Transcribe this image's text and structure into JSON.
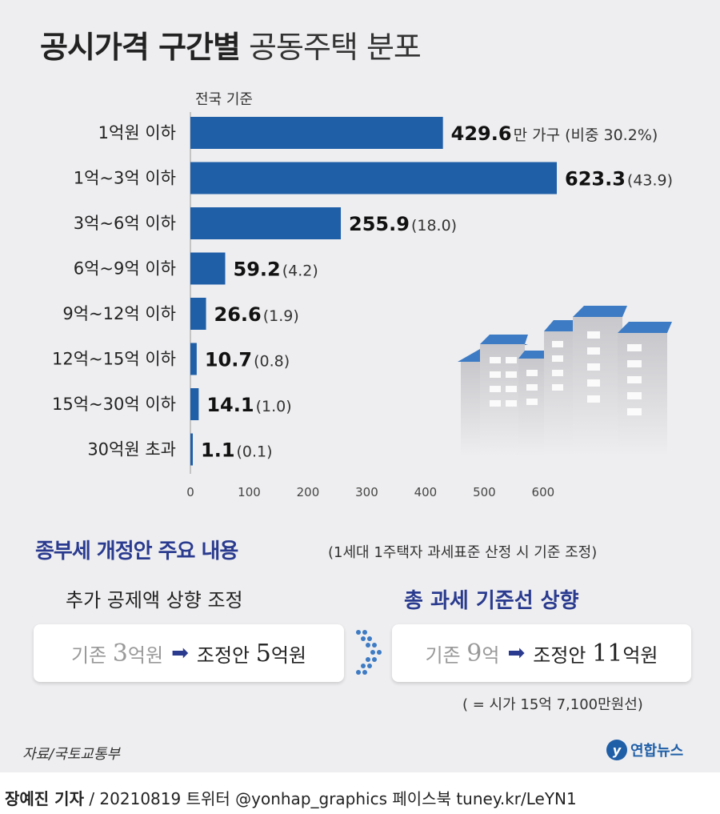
{
  "title": {
    "bold": "공시가격 구간별",
    "normal": "공동주택 분포"
  },
  "basis": "전국 기준",
  "chart_data": {
    "type": "bar",
    "orientation": "horizontal",
    "categories": [
      "1억원 이하",
      "1억~3억 이하",
      "3억~6억 이하",
      "6억~9억 이하",
      "9억~12억 이하",
      "12억~15억 이하",
      "15억~30억 이하",
      "30억원 초과"
    ],
    "values": [
      429.6,
      623.3,
      255.9,
      59.2,
      26.6,
      10.7,
      14.1,
      1.1
    ],
    "value_labels": [
      "429.6",
      "623.3",
      "255.9",
      "59.2",
      "26.6",
      "10.7",
      "14.1",
      "1.1"
    ],
    "unit_label_first": "만 가구 (비중 30.2%)",
    "share_labels": [
      "",
      "(43.9)",
      "(18.0)",
      "(4.2)",
      "(1.9)",
      "(0.8)",
      "(1.0)",
      "(0.1)"
    ],
    "xlim": [
      0,
      650
    ],
    "xticks": [
      "0",
      "100",
      "200",
      "300",
      "400",
      "500",
      "600"
    ],
    "bar_color": "#1f5fa8"
  },
  "section2": {
    "title": "종부세 개정안 주요 내용",
    "note": "(1세대 1주택자 과세표준 산정 시 기준 조정)",
    "left": {
      "heading": "추가 공제액 상향 조정",
      "before_label": "기존",
      "before_value": "3",
      "before_unit": "억원",
      "after_label": "조정안",
      "after_value": "5",
      "after_unit": "억원"
    },
    "right": {
      "heading": "총 과세 기준선 상향",
      "before_label": "기존",
      "before_value": "9",
      "before_unit": "억",
      "after_label": "조정안",
      "after_value": "11",
      "after_unit": "억원",
      "note": "( = 시가 15억 7,100만원선)"
    }
  },
  "source": "자료/국토교통부",
  "logo": "연합뉴스",
  "footer": {
    "byline": "장예진 기자",
    "rest": " / 20210819 트위터 @yonhap_graphics  페이스북 tuney.kr/LeYN1"
  },
  "colors": {
    "accent": "#2a3b8f",
    "bar": "#1f5fa8",
    "roof": "#3d7bc4",
    "panel": "#eeeef0"
  }
}
